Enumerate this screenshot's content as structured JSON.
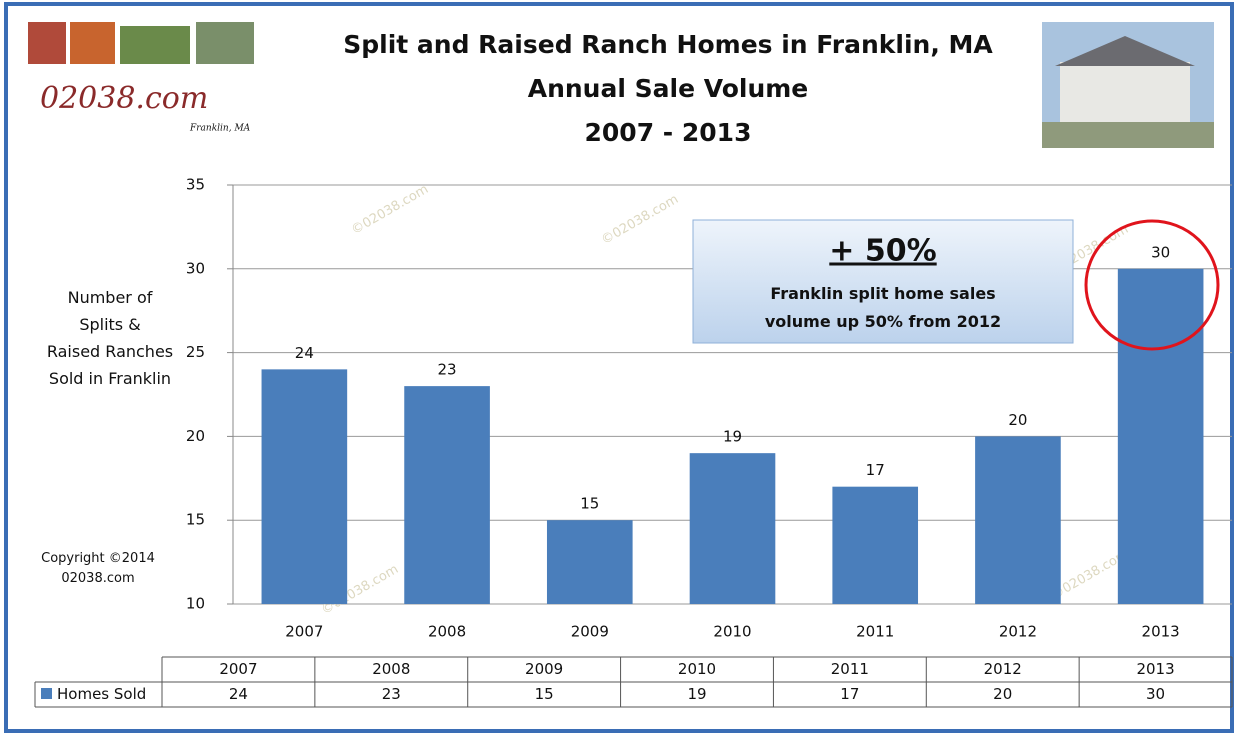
{
  "chart_data": {
    "type": "bar",
    "title": [
      "Split and Raised Ranch Homes in Franklin, MA",
      "Annual Sale Volume",
      "2007 - 2013"
    ],
    "logo": "02038.com",
    "logo_subtitle": "Franklin, MA",
    "y_label": "Number of Splits & Raised Ranches Sold in Franklin",
    "copyright": "Copyright ©2014 02038.com",
    "watermark": "©02038.com",
    "annotation": {
      "headline": "+ 50%",
      "text": "Franklin split home sales volume up 50% from 2012 levels"
    },
    "categories": [
      "2007",
      "2008",
      "2009",
      "2010",
      "2011",
      "2012",
      "2013"
    ],
    "series": [
      {
        "name": "Homes Sold",
        "color": "#4a7ebb",
        "values": [
          24,
          23,
          15,
          19,
          17,
          20,
          30
        ]
      }
    ],
    "ylim": [
      10,
      35
    ],
    "yticks": [
      10,
      15,
      20,
      25,
      30,
      35
    ],
    "grid": true
  }
}
